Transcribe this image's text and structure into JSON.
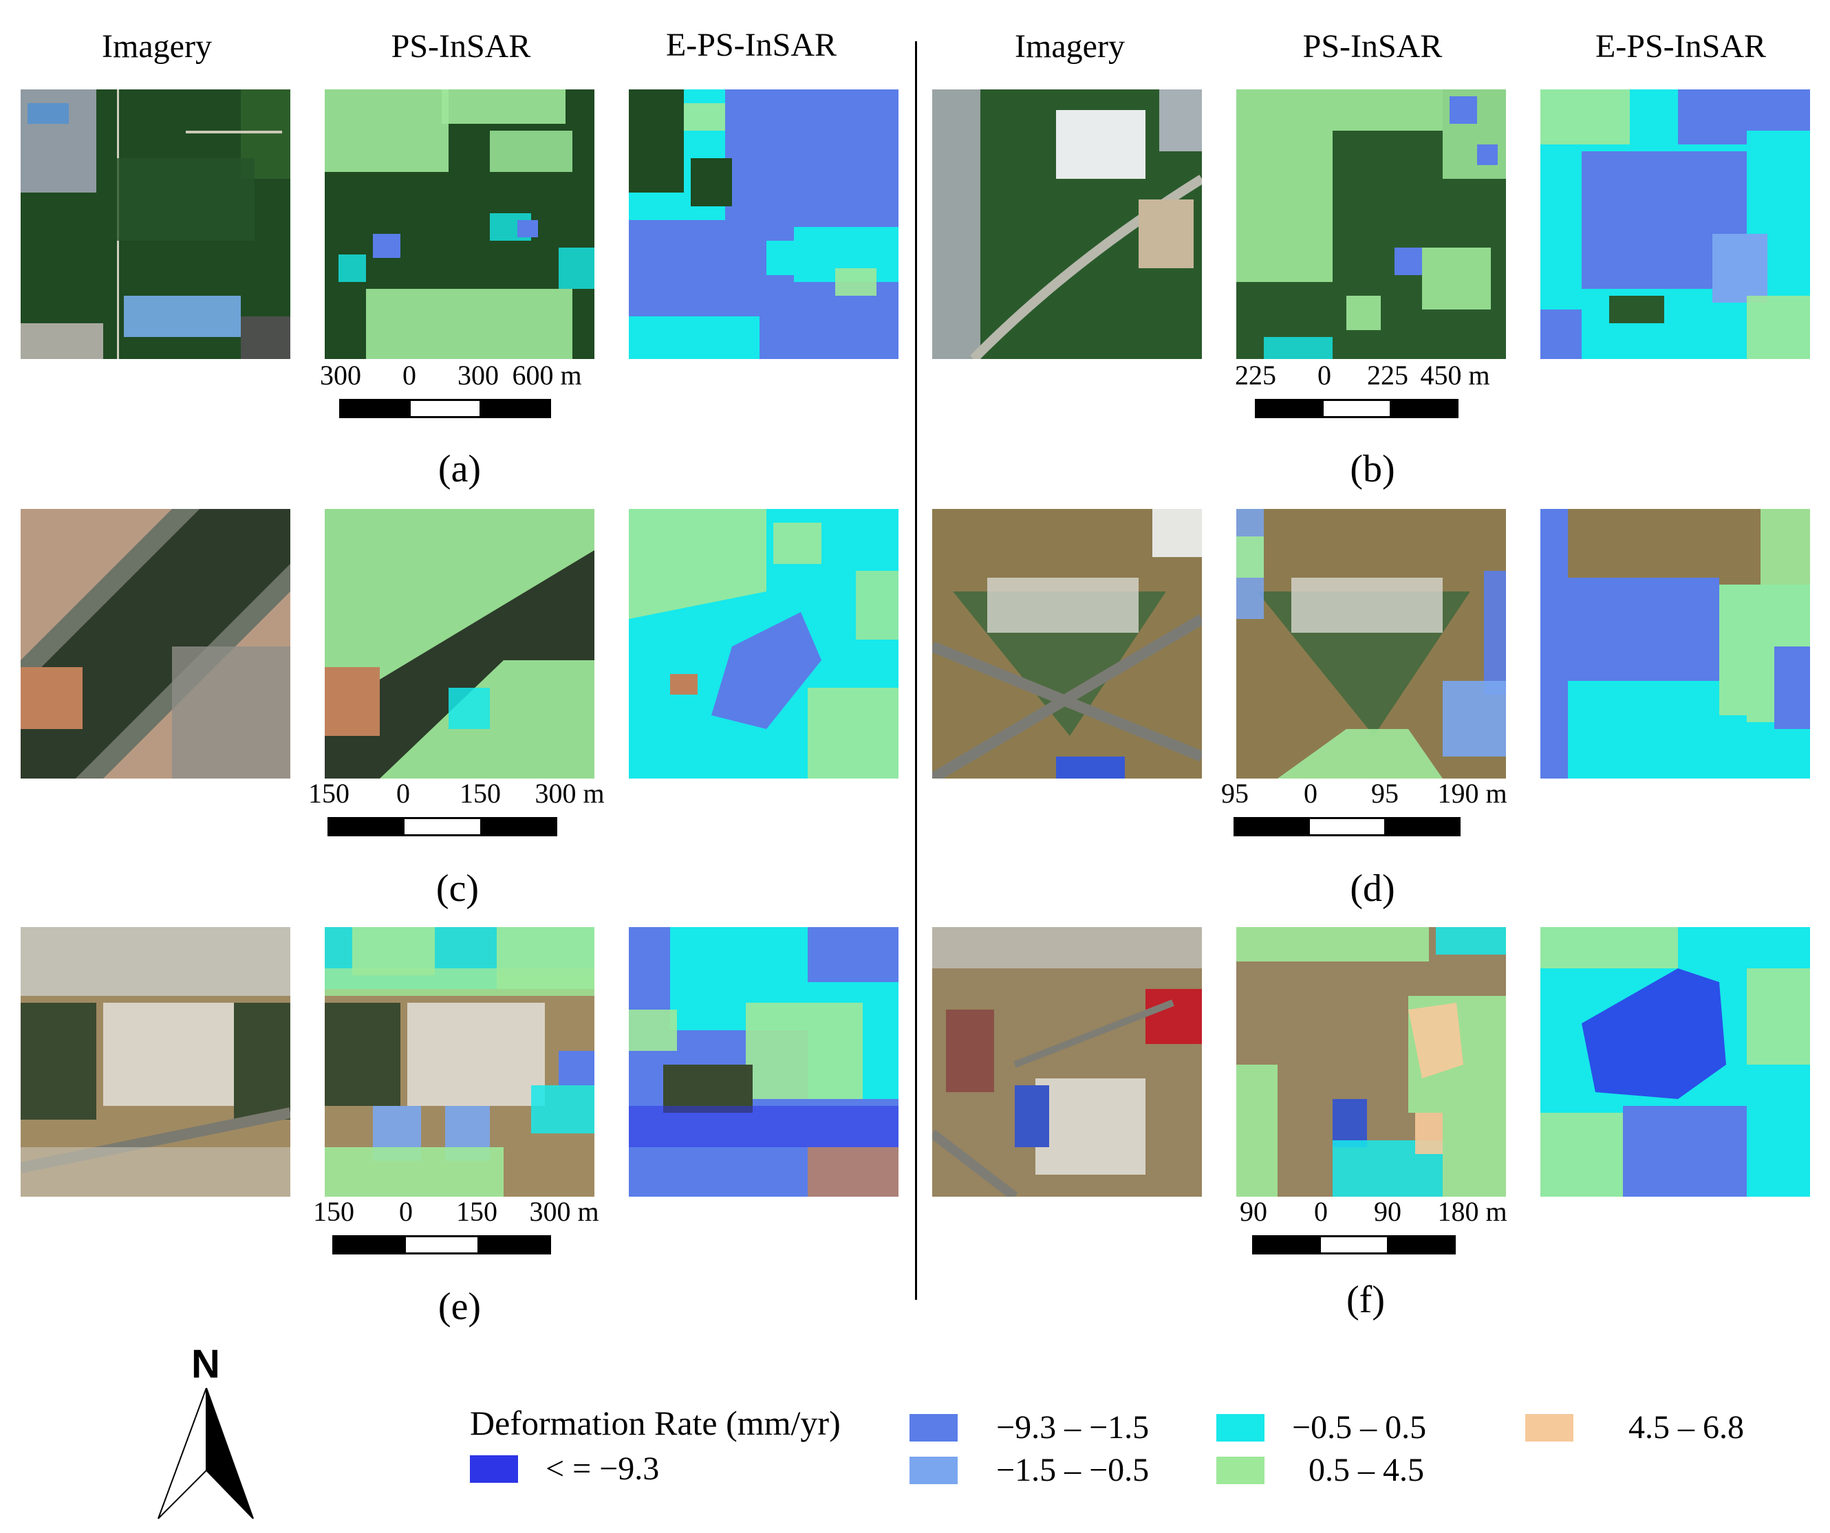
{
  "columns": {
    "left": [
      "Imagery",
      "PS-InSAR",
      "E-PS-InSAR"
    ],
    "right": [
      "Imagery",
      "PS-InSAR",
      "E-PS-InSAR"
    ]
  },
  "panels": [
    {
      "caption": "(a)",
      "scale": {
        "labels": [
          "300",
          "0",
          "300",
          "600 m"
        ]
      }
    },
    {
      "caption": "(b)",
      "scale": {
        "labels": [
          "225",
          "0",
          "225",
          "450 m"
        ]
      }
    },
    {
      "caption": "(c)",
      "scale": {
        "labels": [
          "150",
          "0",
          "150",
          "300 m"
        ]
      }
    },
    {
      "caption": "(d)",
      "scale": {
        "labels": [
          "95",
          "0",
          "95",
          "190 m"
        ]
      }
    },
    {
      "caption": "(e)",
      "scale": {
        "labels": [
          "150",
          "0",
          "150",
          "300 m"
        ]
      }
    },
    {
      "caption": "(f)",
      "scale": {
        "labels": [
          "90",
          "0",
          "90",
          "180 m"
        ]
      }
    }
  ],
  "north_arrow": {
    "label": "N"
  },
  "legend": {
    "title": "Deformation Rate (mm/yr)",
    "classes": [
      {
        "label": "< = −9.3",
        "color": "#2e35e6"
      },
      {
        "label": "−9.3 – −1.5",
        "color": "#5a7de8"
      },
      {
        "label": "−1.5 – −0.5",
        "color": "#7aa6f0"
      },
      {
        "label": "−0.5 –  0.5",
        "color": "#17e8ea"
      },
      {
        "label": "0.5 –  4.5",
        "color": "#9ee89a"
      },
      {
        "label": "4.5 –  6.8",
        "color": "#f6c99a"
      }
    ]
  },
  "colors": {
    "imagery_green": "#1f4a22",
    "imagery_brown": "#8b7a55",
    "urban_gray": "#9a9a94"
  }
}
